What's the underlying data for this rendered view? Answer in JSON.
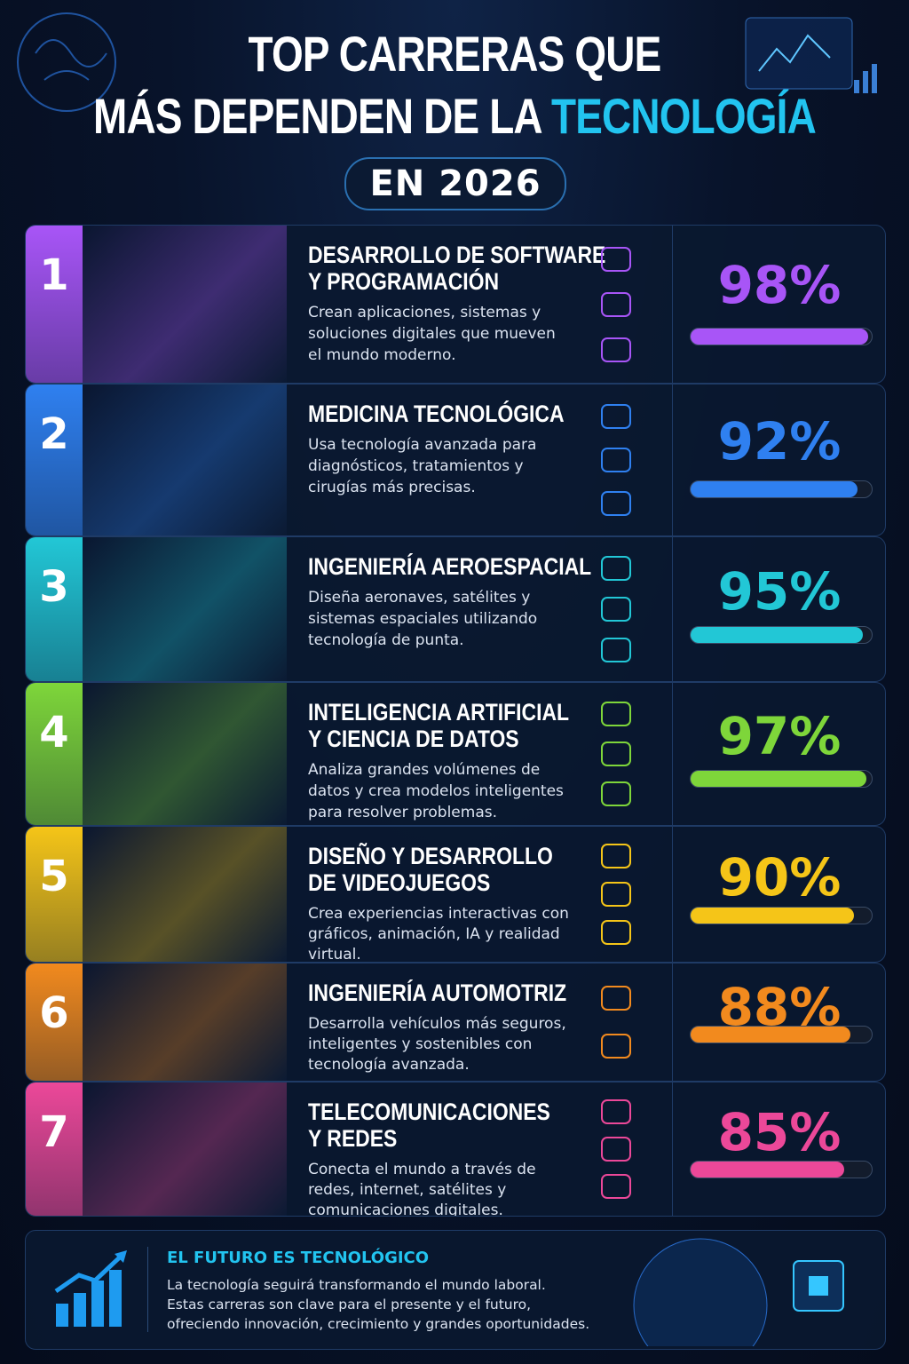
{
  "header": {
    "title_line1": "TOP CARRERAS QUE",
    "title_line2": "MÁS DEPENDEN DE LA",
    "title_highlight": "TECNOLOGÍA",
    "badge": "EN 2026"
  },
  "items": [
    {
      "rank": 1,
      "title_lines": [
        "DESARROLLO DE SOFTWARE",
        "Y PROGRAMACIÓN"
      ],
      "description_lines": [
        "Crean aplicaciones, sistemas y",
        "soluciones digitales que mueven",
        "el mundo moderno."
      ],
      "percent": 98,
      "percent_label": "98%",
      "color": "#a855f7"
    },
    {
      "rank": 2,
      "title_lines": [
        "MEDICINA TECNOLÓGICA"
      ],
      "description_lines": [
        "Usa tecnología avanzada para",
        "diagnósticos, tratamientos y",
        "cirugías más precisas."
      ],
      "percent": 92,
      "percent_label": "92%",
      "color": "#2f80f0"
    },
    {
      "rank": 3,
      "title_lines": [
        "INGENIERÍA AEROESPACIAL"
      ],
      "description_lines": [
        "Diseña aeronaves, satélites y",
        "sistemas espaciales utilizando",
        "tecnología de punta."
      ],
      "percent": 95,
      "percent_label": "95%",
      "color": "#22c7d6"
    },
    {
      "rank": 4,
      "title_lines": [
        "INTELIGENCIA ARTIFICIAL",
        "Y CIENCIA DE DATOS"
      ],
      "description_lines": [
        "Analiza grandes volúmenes de",
        "datos y crea modelos inteligentes",
        "para resolver problemas."
      ],
      "percent": 97,
      "percent_label": "97%",
      "color": "#7ed63a"
    },
    {
      "rank": 5,
      "title_lines": [
        "DISEÑO Y DESARROLLO",
        "DE VIDEOJUEGOS"
      ],
      "description_lines": [
        "Crea experiencias interactivas con",
        "gráficos, animación, IA y realidad",
        "virtual."
      ],
      "percent": 90,
      "percent_label": "90%",
      "color": "#f5c518"
    },
    {
      "rank": 6,
      "title_lines": [
        "INGENIERÍA AUTOMOTRIZ"
      ],
      "description_lines": [
        "Desarrolla vehículos más seguros,",
        "inteligentes y sostenibles con",
        "tecnología avanzada."
      ],
      "percent": 88,
      "percent_label": "88%",
      "color": "#f28a1e"
    },
    {
      "rank": 7,
      "title_lines": [
        "TELECOMUNICACIONES",
        "Y REDES"
      ],
      "description_lines": [
        "Conecta el mundo a través de",
        "redes, internet, satélites y",
        "comunicaciones digitales."
      ],
      "percent": 85,
      "percent_label": "85%",
      "color": "#ec4899"
    }
  ],
  "footer": {
    "title": "EL FUTURO ES TECNOLÓGICO",
    "text_lines": [
      "La tecnología seguirá transformando el mundo laboral.",
      "Estas carreras son clave para el presente y el futuro,",
      "ofreciendo innovación, crecimiento y grandes oportunidades."
    ]
  }
}
